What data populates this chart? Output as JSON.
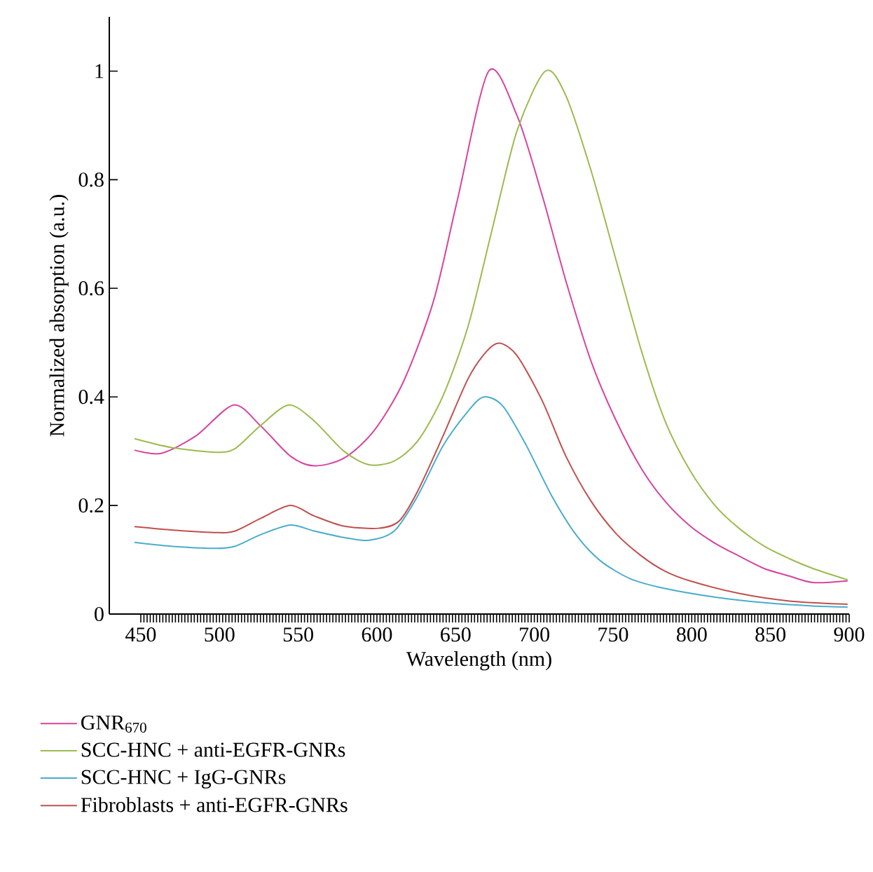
{
  "chart_data": {
    "type": "line",
    "xlabel": "Wavelength (nm)",
    "ylabel": "Normalized absorption (a.u.)",
    "xlim": [
      430,
      900
    ],
    "ylim": [
      0,
      1.1
    ],
    "xticks": [
      450,
      500,
      550,
      600,
      650,
      700,
      750,
      800,
      850,
      900
    ],
    "yticks": [
      0,
      0.2,
      0.4,
      0.6,
      0.8,
      1
    ],
    "grid": false,
    "legend": "bottom",
    "marker": "none",
    "line_style": "solid",
    "series": [
      {
        "name": "GNR$_{670}$",
        "color": "#d6449f",
        "x": [
          446,
          463,
          485,
          509,
          526,
          545,
          560,
          579,
          598,
          617,
          636,
          651,
          671,
          689,
          705,
          720,
          736,
          752,
          768,
          783,
          799,
          815,
          830,
          846,
          862,
          877,
          899
        ],
        "values": [
          0.302,
          0.296,
          0.328,
          0.385,
          0.347,
          0.291,
          0.273,
          0.287,
          0.337,
          0.429,
          0.577,
          0.761,
          1.0,
          0.918,
          0.771,
          0.614,
          0.466,
          0.356,
          0.268,
          0.208,
          0.162,
          0.13,
          0.107,
          0.084,
          0.07,
          0.058,
          0.061
        ]
      },
      {
        "name": "SCC-HNC + anti-EGFR-GNRs",
        "color": "#9cbb4f",
        "x": [
          446,
          469,
          498,
          510,
          526,
          544,
          560,
          579,
          595,
          611,
          626,
          642,
          658,
          673,
          689,
          707,
          720,
          736,
          752,
          768,
          783,
          799,
          815,
          830,
          846,
          862,
          877,
          899
        ],
        "values": [
          0.323,
          0.307,
          0.298,
          0.305,
          0.347,
          0.385,
          0.356,
          0.3,
          0.275,
          0.282,
          0.319,
          0.402,
          0.531,
          0.706,
          0.89,
          1.0,
          0.955,
          0.817,
          0.651,
          0.485,
          0.356,
          0.264,
          0.199,
          0.158,
          0.125,
          0.102,
          0.084,
          0.063
        ]
      },
      {
        "name": "SCC-HNC + IgG-GNRs",
        "color": "#4aaccc",
        "x": [
          446,
          469,
          498,
          510,
          526,
          545,
          560,
          579,
          595,
          611,
          626,
          642,
          658,
          668,
          680,
          695,
          711,
          727,
          742,
          761,
          783,
          815,
          846,
          877,
          899
        ],
        "values": [
          0.132,
          0.125,
          0.121,
          0.125,
          0.146,
          0.164,
          0.153,
          0.141,
          0.136,
          0.153,
          0.218,
          0.31,
          0.374,
          0.4,
          0.383,
          0.31,
          0.218,
          0.144,
          0.098,
          0.065,
          0.047,
          0.031,
          0.021,
          0.015,
          0.013
        ]
      },
      {
        "name": "Fibroblasts + anti-EGFR-GNRs",
        "color": "#c0504d",
        "x": [
          446,
          469,
          498,
          510,
          526,
          545,
          560,
          579,
          601,
          614,
          626,
          642,
          658,
          670,
          678,
          689,
          705,
          720,
          736,
          752,
          768,
          783,
          799,
          830,
          862,
          899
        ],
        "values": [
          0.161,
          0.155,
          0.15,
          0.153,
          0.176,
          0.2,
          0.181,
          0.162,
          0.158,
          0.171,
          0.227,
          0.328,
          0.434,
          0.485,
          0.499,
          0.476,
          0.393,
          0.291,
          0.208,
          0.148,
          0.107,
          0.079,
          0.061,
          0.038,
          0.024,
          0.018
        ]
      }
    ]
  }
}
